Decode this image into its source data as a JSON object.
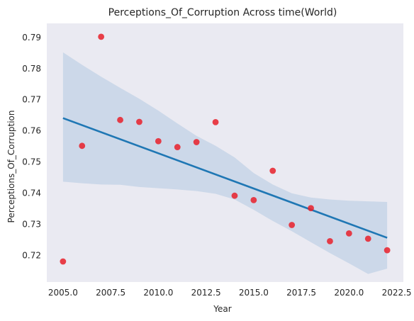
{
  "chart_data": {
    "type": "scatter",
    "title": "Perceptions_Of_Corruption Across time(World)",
    "xlabel": "Year",
    "ylabel": "Perceptions_Of_Corruption",
    "xlim": [
      2004.15,
      2022.85
    ],
    "ylim": [
      0.7115,
      0.7945
    ],
    "xticks": [
      2005.0,
      2007.5,
      2010.0,
      2012.5,
      2015.0,
      2017.5,
      2020.0,
      2022.5
    ],
    "xtick_labels": [
      "2005.0",
      "2007.5",
      "2010.0",
      "2012.5",
      "2015.0",
      "2017.5",
      "2020.0",
      "2022.5"
    ],
    "yticks": [
      0.72,
      0.73,
      0.74,
      0.75,
      0.76,
      0.77,
      0.78,
      0.79
    ],
    "ytick_labels": [
      "0.72",
      "0.73",
      "0.74",
      "0.75",
      "0.76",
      "0.77",
      "0.78",
      "0.79"
    ],
    "grid": false,
    "points": [
      {
        "x": 2005,
        "y": 0.7181
      },
      {
        "x": 2006,
        "y": 0.7552
      },
      {
        "x": 2007,
        "y": 0.7902
      },
      {
        "x": 2008,
        "y": 0.7635
      },
      {
        "x": 2009,
        "y": 0.7629
      },
      {
        "x": 2010,
        "y": 0.7567
      },
      {
        "x": 2011,
        "y": 0.7548
      },
      {
        "x": 2012,
        "y": 0.7564
      },
      {
        "x": 2013,
        "y": 0.7628
      },
      {
        "x": 2014,
        "y": 0.7392
      },
      {
        "x": 2015,
        "y": 0.7378
      },
      {
        "x": 2016,
        "y": 0.7472
      },
      {
        "x": 2017,
        "y": 0.7298
      },
      {
        "x": 2018,
        "y": 0.7352
      },
      {
        "x": 2019,
        "y": 0.7246
      },
      {
        "x": 2020,
        "y": 0.7271
      },
      {
        "x": 2021,
        "y": 0.7254
      },
      {
        "x": 2022,
        "y": 0.7217
      }
    ],
    "regression_line": {
      "x": [
        2005,
        2022
      ],
      "y": [
        0.7641,
        0.7257
      ]
    },
    "confidence_band": {
      "x": [
        2005,
        2006,
        2007,
        2008,
        2009,
        2010,
        2011,
        2012,
        2013,
        2014,
        2015,
        2016,
        2017,
        2018,
        2019,
        2020,
        2021,
        2022
      ],
      "upper": [
        0.7852,
        0.7812,
        0.7774,
        0.7738,
        0.7703,
        0.7665,
        0.7624,
        0.7584,
        0.7552,
        0.7515,
        0.7465,
        0.7428,
        0.74,
        0.7386,
        0.738,
        0.7376,
        0.7374,
        0.7372
      ],
      "lower": [
        0.7437,
        0.7432,
        0.7428,
        0.7427,
        0.742,
        0.7416,
        0.7412,
        0.7407,
        0.7398,
        0.738,
        0.7347,
        0.7311,
        0.7278,
        0.7243,
        0.7208,
        0.7175,
        0.7141,
        0.7158
      ]
    },
    "colors": {
      "background": "#eaeaf2",
      "points": "#e8202a",
      "line": "#1f77b4",
      "band": "#a9c4dd",
      "text": "#262626"
    }
  }
}
